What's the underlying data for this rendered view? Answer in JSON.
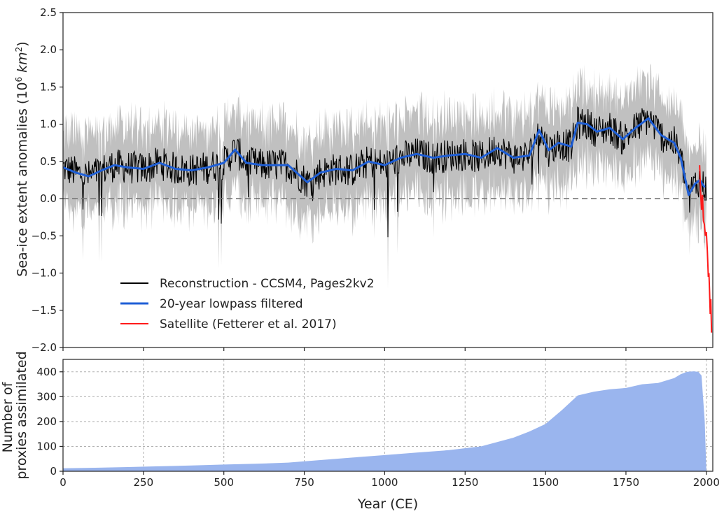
{
  "chart_data": [
    {
      "type": "line",
      "id": "top-panel",
      "ylabel_main": "Sea-ice extent anomalies (10",
      "ylabel_sup": "6",
      "ylabel_unit": " km",
      "ylabel_unit_sup": "2",
      "ylabel_close": ")",
      "xlim": [
        0,
        2020
      ],
      "ylim": [
        -2.0,
        2.5
      ],
      "yticks": [
        -2.0,
        -1.5,
        -1.0,
        -0.5,
        0.0,
        0.5,
        1.0,
        1.5,
        2.0,
        2.5
      ],
      "ytick_labels": [
        "−2.0",
        "−1.5",
        "−1.0",
        "−0.5",
        "0.0",
        "0.5",
        "1.0",
        "1.5",
        "2.0",
        "2.5"
      ],
      "zero_line": true,
      "legend_position": "lower-left",
      "series": [
        {
          "name": "Reconstruction - CCSM4, Pages2kv2",
          "color": "#000000",
          "uncertainty_color": "#b5b5b5",
          "uncertainty_halfwidth": 0.45
        },
        {
          "name": "20-year lowpass filtered",
          "color": "#1f5fd6",
          "x": [
            0,
            40,
            80,
            120,
            160,
            200,
            250,
            300,
            350,
            400,
            450,
            500,
            535,
            570,
            620,
            700,
            760,
            800,
            850,
            900,
            950,
            1000,
            1050,
            1100,
            1150,
            1200,
            1250,
            1300,
            1350,
            1400,
            1450,
            1480,
            1510,
            1540,
            1580,
            1600,
            1630,
            1660,
            1700,
            1740,
            1780,
            1820,
            1860,
            1900,
            1920,
            1945,
            1965,
            1980,
            1995
          ],
          "y": [
            0.42,
            0.35,
            0.3,
            0.38,
            0.45,
            0.42,
            0.4,
            0.48,
            0.4,
            0.38,
            0.42,
            0.48,
            0.66,
            0.48,
            0.45,
            0.45,
            0.22,
            0.35,
            0.4,
            0.38,
            0.5,
            0.45,
            0.55,
            0.6,
            0.55,
            0.58,
            0.6,
            0.55,
            0.68,
            0.55,
            0.58,
            0.92,
            0.65,
            0.75,
            0.7,
            1.02,
            1.0,
            0.9,
            0.95,
            0.8,
            0.95,
            1.08,
            0.85,
            0.75,
            0.55,
            0.05,
            0.2,
            0.25,
            0.15
          ]
        },
        {
          "name": "Satellite (Fetterer et al. 2017)",
          "color": "#ff1a1a",
          "x": [
            1979,
            1982,
            1985,
            1988,
            1991,
            1994,
            1997,
            2000,
            2003,
            2006,
            2008,
            2010,
            2012,
            2014,
            2016
          ],
          "y": [
            0.45,
            0.1,
            -0.15,
            0.05,
            -0.3,
            -0.35,
            -0.5,
            -0.45,
            -0.7,
            -1.05,
            -1.0,
            -1.25,
            -1.55,
            -1.35,
            -1.8
          ]
        }
      ]
    },
    {
      "type": "area",
      "id": "bottom-panel",
      "ylabel_line1": "Number of",
      "ylabel_line2": "proxies assimilated",
      "xlabel": "Year (CE)",
      "xlim": [
        0,
        2020
      ],
      "ylim": [
        0,
        450
      ],
      "yticks": [
        0,
        100,
        200,
        300,
        400
      ],
      "ytick_labels": [
        "0",
        "100",
        "200",
        "300",
        "400"
      ],
      "xticks": [
        0,
        250,
        500,
        750,
        1000,
        1250,
        1500,
        1750,
        2000
      ],
      "xtick_labels": [
        "0",
        "250",
        "500",
        "750",
        "1000",
        "1250",
        "1500",
        "1750",
        "2000"
      ],
      "grid": true,
      "color": "#9ab5ee",
      "x": [
        0,
        100,
        200,
        300,
        400,
        500,
        600,
        700,
        800,
        900,
        1000,
        1100,
        1200,
        1300,
        1400,
        1450,
        1500,
        1550,
        1600,
        1650,
        1700,
        1750,
        1800,
        1850,
        1900,
        1920,
        1940,
        1960,
        1975,
        1985,
        1995,
        2000
      ],
      "y": [
        12,
        14,
        17,
        20,
        23,
        27,
        30,
        35,
        45,
        55,
        65,
        75,
        85,
        100,
        135,
        160,
        190,
        245,
        305,
        320,
        330,
        335,
        350,
        355,
        375,
        390,
        400,
        402,
        400,
        385,
        200,
        0
      ]
    }
  ]
}
